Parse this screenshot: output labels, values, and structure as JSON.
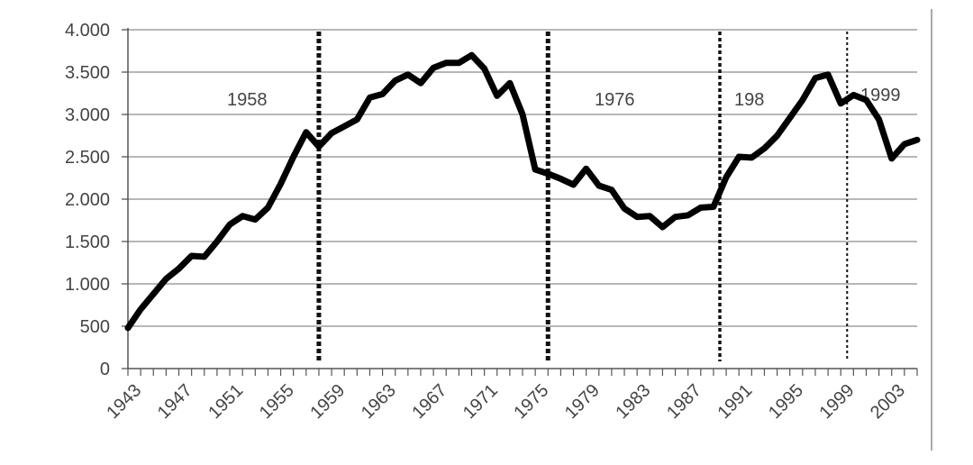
{
  "chart_data": {
    "type": "line",
    "title": "",
    "xlabel": "",
    "ylabel": "",
    "xlim": [
      1943,
      2005
    ],
    "ylim": [
      0,
      4000
    ],
    "grid": "horizontal",
    "legend": "none",
    "line_color": "#000000",
    "grid_color": "#8c8c8c",
    "yticks": [
      0,
      500,
      1000,
      1500,
      2000,
      2500,
      3000,
      3500,
      4000
    ],
    "ytick_labels": [
      "0",
      "500",
      "1.000",
      "1.500",
      "2.000",
      "2.500",
      "3.000",
      "3.500",
      "4.000"
    ],
    "xtick_labels": [
      "1943",
      "1947",
      "1951",
      "1955",
      "1959",
      "1963",
      "1967",
      "1971",
      "1975",
      "1979",
      "1983",
      "1987",
      "1991",
      "1995",
      "1999",
      "2003"
    ],
    "series": [
      {
        "x": [
          1943,
          1944,
          1945,
          1946,
          1947,
          1948,
          1949,
          1950,
          1951,
          1952,
          1953,
          1954,
          1955,
          1956,
          1957,
          1958,
          1959,
          1960,
          1961,
          1962,
          1963,
          1964,
          1965,
          1966,
          1967,
          1968,
          1969,
          1970,
          1971,
          1972,
          1973,
          1974,
          1975,
          1976,
          1977,
          1978,
          1979,
          1980,
          1981,
          1982,
          1983,
          1984,
          1985,
          1986,
          1987,
          1988,
          1989,
          1990,
          1991,
          1992,
          1993,
          1994,
          1995,
          1996,
          1997,
          1998,
          1999,
          2000,
          2001,
          2002,
          2003,
          2004,
          2005
        ],
        "y": [
          480,
          700,
          880,
          1060,
          1180,
          1330,
          1320,
          1500,
          1700,
          1800,
          1760,
          1900,
          2180,
          2500,
          2790,
          2620,
          2780,
          2860,
          2940,
          3200,
          3240,
          3400,
          3470,
          3370,
          3550,
          3610,
          3610,
          3700,
          3540,
          3220,
          3370,
          3000,
          2350,
          2300,
          2240,
          2170,
          2360,
          2160,
          2110,
          1890,
          1790,
          1800,
          1670,
          1790,
          1810,
          1900,
          1910,
          2260,
          2500,
          2490,
          2600,
          2750,
          2960,
          3170,
          3430,
          3470,
          3130,
          3230,
          3170,
          2940,
          2480,
          2650,
          2700
        ]
      }
    ],
    "annotations": [
      {
        "x": 1958,
        "label": "1958",
        "line_style": "heavy-dotted"
      },
      {
        "x": 1976,
        "label": "1976",
        "line_style": "heavy-dotted"
      },
      {
        "x": 1989.5,
        "label": "198",
        "line_style": "dotted"
      },
      {
        "x": 1999.5,
        "label": "1999",
        "line_style": "light-dotted"
      }
    ]
  }
}
